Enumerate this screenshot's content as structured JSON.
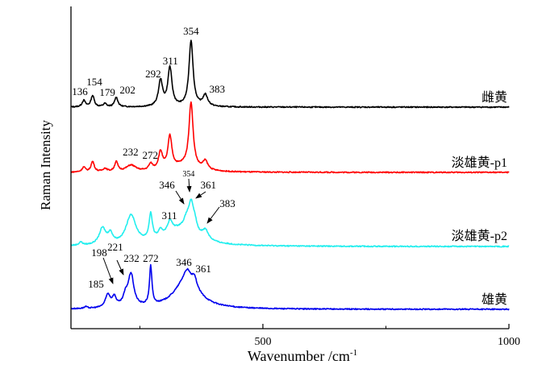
{
  "chart_data": {
    "type": "line",
    "title": "",
    "xlabel": "Wavenumber /cm",
    "xlabel_sup": "-1",
    "ylabel": "Raman Intensity",
    "xlim": [
      110,
      1000
    ],
    "ylim": [
      0,
      100
    ],
    "xticks_major": [
      500,
      1000
    ],
    "xticks_minor": [
      250,
      750
    ],
    "xtick_labels": [
      "500",
      "1000"
    ],
    "grid": false,
    "note": "Spectra are offset vertically; intensity in arbitrary units; each series described by baseline and peaks [position cm-1, height, half-width]",
    "series": [
      {
        "name": "雌黄",
        "color": "#000000",
        "baseline": 68.75,
        "peaks": [
          [
            136,
            2,
            4
          ],
          [
            154,
            3.5,
            4
          ],
          [
            179,
            1,
            4
          ],
          [
            202,
            3,
            4
          ],
          [
            292,
            8,
            5
          ],
          [
            311,
            12,
            5
          ],
          [
            354,
            20.5,
            5
          ],
          [
            383,
            3.5,
            6
          ]
        ]
      },
      {
        "name": "淡雄黄-p1",
        "color": "#ff0000",
        "baseline": 48.5,
        "peaks": [
          [
            136,
            1.5,
            4
          ],
          [
            154,
            3.2,
            4
          ],
          [
            179,
            1,
            5
          ],
          [
            202,
            3,
            4
          ],
          [
            232,
            2,
            12
          ],
          [
            272,
            2,
            5
          ],
          [
            292,
            5.5,
            5
          ],
          [
            311,
            10,
            5
          ],
          [
            340,
            2,
            30
          ],
          [
            354,
            20,
            5
          ],
          [
            383,
            2.7,
            6
          ]
        ]
      },
      {
        "name": "淡雄黄-p2",
        "color": "#22eeee",
        "baseline": 25.5,
        "peaks": [
          [
            130,
            1,
            4
          ],
          [
            174,
            5,
            8
          ],
          [
            190,
            3,
            6
          ],
          [
            232,
            9,
            12
          ],
          [
            272,
            8,
            4
          ],
          [
            292,
            2,
            5
          ],
          [
            311,
            3.5,
            6
          ],
          [
            330,
            5,
            40
          ],
          [
            346,
            4,
            8
          ],
          [
            354,
            7,
            5
          ],
          [
            361,
            4,
            6
          ],
          [
            383,
            3,
            8
          ]
        ]
      },
      {
        "name": "雄黄",
        "color": "#0000ee",
        "baseline": 6,
        "peaks": [
          [
            140,
            0.5,
            4
          ],
          [
            185,
            4,
            6
          ],
          [
            198,
            3,
            5
          ],
          [
            221,
            3,
            6
          ],
          [
            232,
            10,
            7
          ],
          [
            272,
            12,
            3
          ],
          [
            345,
            9,
            30
          ],
          [
            346,
            3,
            8
          ],
          [
            361,
            3,
            6
          ]
        ]
      }
    ],
    "series_labels": [
      {
        "text": "雌黄",
        "x": 1000,
        "y": 70.5
      },
      {
        "text": "淡雄黄-p1",
        "x": 1000,
        "y": 50.2
      },
      {
        "text": "淡雄黄-p2",
        "x": 1000,
        "y": 27.5
      },
      {
        "text": "雄黄",
        "x": 1000,
        "y": 7.7
      }
    ],
    "annotations": [
      {
        "text": "136",
        "x": 128,
        "y": 72.5
      },
      {
        "text": "154",
        "x": 157.5,
        "y": 75.5
      },
      {
        "text": "179",
        "x": 184,
        "y": 72.25
      },
      {
        "text": "202",
        "x": 225,
        "y": 73
      },
      {
        "text": "292",
        "x": 277,
        "y": 78
      },
      {
        "text": "311",
        "x": 312,
        "y": 82
      },
      {
        "text": "354",
        "x": 354,
        "y": 91.25
      },
      {
        "text": "383",
        "x": 407,
        "y": 73.25
      },
      {
        "text": "232",
        "x": 231,
        "y": 53.75
      },
      {
        "text": "272",
        "x": 271,
        "y": 52.75
      },
      {
        "text": "354",
        "x": 349,
        "y": 47.25,
        "small": true
      },
      {
        "text": "346",
        "x": 305,
        "y": 43.5
      },
      {
        "text": "361",
        "x": 389,
        "y": 43.5
      },
      {
        "text": "383",
        "x": 428,
        "y": 37.75
      },
      {
        "text": "311",
        "x": 310,
        "y": 34
      },
      {
        "text": "198",
        "x": 167.4,
        "y": 22.5
      },
      {
        "text": "221",
        "x": 200,
        "y": 24.25
      },
      {
        "text": "232",
        "x": 233,
        "y": 20.75
      },
      {
        "text": "272",
        "x": 272,
        "y": 20.75
      },
      {
        "text": "185",
        "x": 160.8,
        "y": 12.75
      },
      {
        "text": "346",
        "x": 339.5,
        "y": 19.5
      },
      {
        "text": "361",
        "x": 379,
        "y": 17.5
      }
    ],
    "arrows": [
      {
        "from": [
          323,
          42.75
        ],
        "to": [
          339.5,
          38.75
        ]
      },
      {
        "from": [
          349.3,
          46.5
        ],
        "to": [
          351,
          42.5
        ]
      },
      {
        "from": [
          383.7,
          42.5
        ],
        "to": [
          364,
          40.5
        ]
      },
      {
        "from": [
          411.6,
          37.75
        ],
        "to": [
          387,
          32.75
        ]
      },
      {
        "from": [
          175.6,
          22
        ],
        "to": [
          195.2,
          14
        ]
      },
      {
        "from": [
          203.4,
          21.25
        ],
        "to": [
          216.5,
          16.75
        ]
      }
    ]
  }
}
